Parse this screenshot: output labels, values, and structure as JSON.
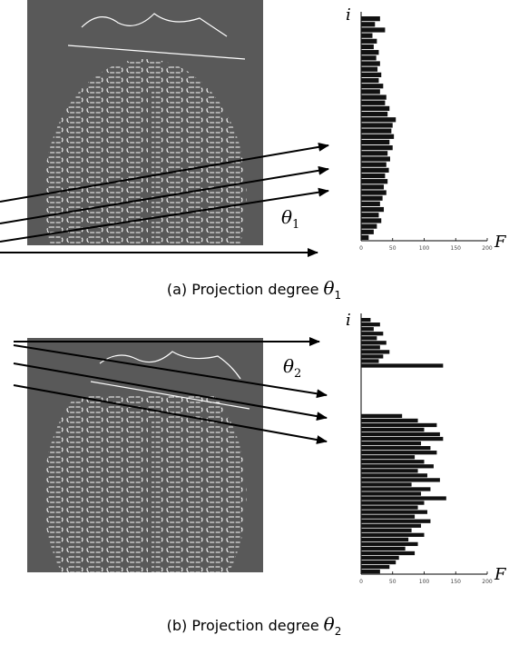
{
  "figures": [
    {
      "caption": "(a) Projection degree",
      "angle": {
        "symbol": "θ",
        "subscript": "1"
      },
      "histogram": {
        "y_label": "i",
        "x_label": "F",
        "xlim": [
          0,
          200
        ],
        "xticks": [
          0,
          50,
          100,
          150,
          200
        ],
        "values": [
          30,
          22,
          38,
          18,
          25,
          20,
          28,
          24,
          30,
          26,
          32,
          28,
          35,
          30,
          40,
          38,
          45,
          42,
          55,
          50,
          48,
          52,
          45,
          50,
          42,
          46,
          40,
          44,
          38,
          42,
          36,
          40,
          34,
          30,
          36,
          28,
          32,
          25,
          20,
          12
        ]
      }
    },
    {
      "caption": "(b) Projection degree",
      "angle": {
        "symbol": "θ",
        "subscript": "2"
      },
      "histogram": {
        "y_label": "i",
        "x_label": "F",
        "xlim": [
          0,
          200
        ],
        "xticks": [
          0,
          50,
          100,
          150,
          200
        ],
        "values": [
          15,
          30,
          20,
          35,
          25,
          40,
          30,
          45,
          35,
          28,
          130,
          0,
          0,
          0,
          0,
          0,
          0,
          0,
          0,
          0,
          0,
          65,
          90,
          120,
          100,
          125,
          130,
          95,
          110,
          120,
          85,
          100,
          115,
          90,
          105,
          125,
          80,
          110,
          95,
          135,
          100,
          90,
          105,
          85,
          110,
          95,
          80,
          100,
          75,
          90,
          70,
          85,
          60,
          55,
          45,
          30
        ]
      }
    }
  ]
}
